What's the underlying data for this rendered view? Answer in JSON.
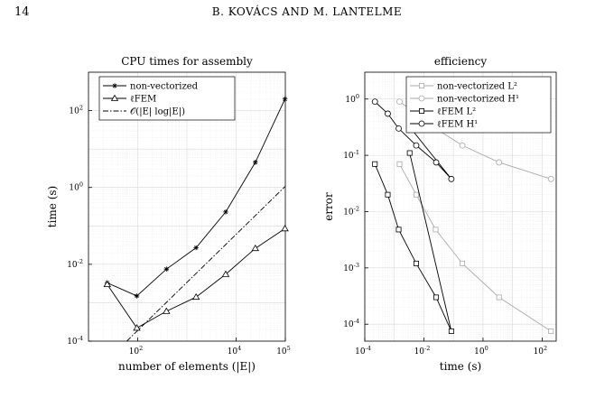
{
  "page": {
    "number": "14",
    "header": "B. KOVÁCS AND M. LANTELME"
  },
  "chart_data": [
    {
      "type": "line",
      "title": "CPU times for assembly",
      "xlabel": "number of elements (|E|)",
      "ylabel": "time (s)",
      "xscale": "log",
      "yscale": "log",
      "xlim": [
        10,
        100000
      ],
      "ylim": [
        0.0001,
        1000
      ],
      "xticks": [
        {
          "v": 100,
          "m": "10",
          "e": "2"
        },
        {
          "v": 10000,
          "m": "10",
          "e": "4"
        },
        {
          "v": 100000,
          "m": "10",
          "e": "5"
        }
      ],
      "yticks": [
        {
          "v": 0.0001,
          "m": "10",
          "e": "-4"
        },
        {
          "v": 0.01,
          "m": "10",
          "e": "-2"
        },
        {
          "v": 1,
          "m": "10",
          "e": "0"
        },
        {
          "v": 100,
          "m": "10",
          "e": "2"
        }
      ],
      "grid": true,
      "legend_position": "top-left",
      "series": [
        {
          "name": "non-vectorized",
          "marker": "asterisk",
          "color": "#000000",
          "dash": "solid",
          "x": [
            24,
            96,
            384,
            1536,
            6144,
            24576,
            98304
          ],
          "y": [
            0.0033,
            0.0015,
            0.0075,
            0.027,
            0.23,
            4.5,
            200
          ]
        },
        {
          "name": "ℓFEM",
          "marker": "triangle",
          "color": "#000000",
          "dash": "solid",
          "x": [
            24,
            96,
            384,
            1536,
            6144,
            24576,
            98304
          ],
          "y": [
            0.003,
            0.00022,
            0.0006,
            0.0014,
            0.0055,
            0.026,
            0.085
          ]
        },
        {
          "name": "𝒪(|E| log|E|)",
          "marker": "none",
          "color": "#000000",
          "dash": "dashdot",
          "x": [
            60,
            98304
          ],
          "y": [
            0.0001,
            1.05
          ]
        }
      ]
    },
    {
      "type": "line",
      "title": "efficiency",
      "xlabel": "time (s)",
      "ylabel": "error",
      "xscale": "log",
      "yscale": "log",
      "xlim": [
        0.0001,
        300
      ],
      "ylim": [
        5e-05,
        3
      ],
      "xticks": [
        {
          "v": 0.0001,
          "m": "10",
          "e": "-4"
        },
        {
          "v": 0.01,
          "m": "10",
          "e": "-2"
        },
        {
          "v": 1,
          "m": "10",
          "e": "0"
        },
        {
          "v": 100,
          "m": "10",
          "e": "2"
        }
      ],
      "yticks": [
        {
          "v": 0.0001,
          "m": "10",
          "e": "-4"
        },
        {
          "v": 0.001,
          "m": "10",
          "e": "-3"
        },
        {
          "v": 0.01,
          "m": "10",
          "e": "-2"
        },
        {
          "v": 0.1,
          "m": "10",
          "e": "-1"
        },
        {
          "v": 1,
          "m": "10",
          "e": "0"
        }
      ],
      "grid": true,
      "legend_position": "top-right",
      "series": [
        {
          "name": "non-vectorized L²",
          "marker": "square",
          "color": "#aaaaaa",
          "dash": "solid",
          "x": [
            0.0015,
            0.0055,
            0.025,
            0.2,
            3.5,
            200
          ],
          "y": [
            0.07,
            0.02,
            0.0048,
            0.0012,
            0.0003,
            7.5e-05
          ]
        },
        {
          "name": "non-vectorized H¹",
          "marker": "circle",
          "color": "#aaaaaa",
          "dash": "solid",
          "x": [
            0.0015,
            0.0055,
            0.025,
            0.2,
            3.5,
            200
          ],
          "y": [
            0.9,
            0.55,
            0.3,
            0.15,
            0.075,
            0.038
          ]
        },
        {
          "name": "ℓFEM L²",
          "marker": "square",
          "color": "#000000",
          "dash": "solid",
          "x": [
            0.00022,
            0.0006,
            0.0014,
            0.0055,
            0.026,
            0.085,
            0.0033
          ],
          "y": [
            0.07,
            0.02,
            0.0048,
            0.0012,
            0.0003,
            7.5e-05,
            0.11
          ]
        },
        {
          "name": "ℓFEM H¹",
          "marker": "circle",
          "color": "#000000",
          "dash": "solid",
          "x": [
            0.00022,
            0.0006,
            0.0014,
            0.0055,
            0.026,
            0.085,
            0.0033
          ],
          "y": [
            0.9,
            0.55,
            0.3,
            0.15,
            0.075,
            0.038,
            0.32
          ]
        }
      ]
    }
  ]
}
